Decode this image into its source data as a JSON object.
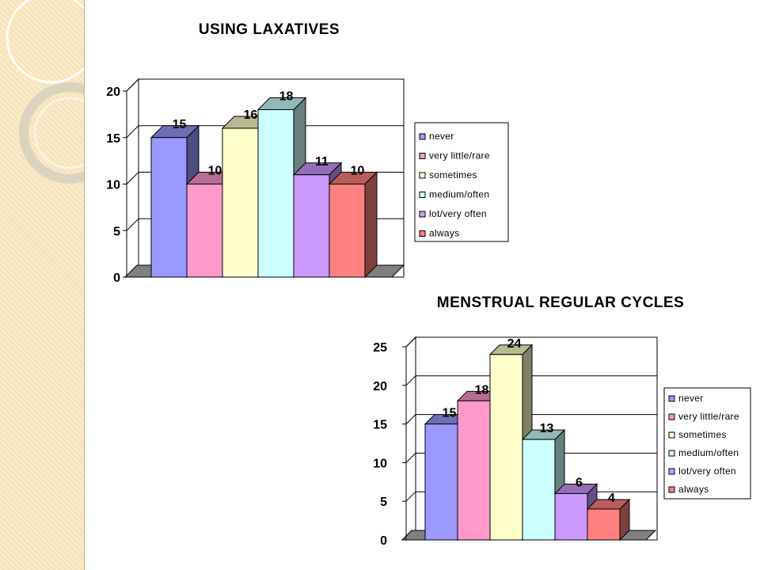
{
  "chart_data": [
    {
      "type": "bar",
      "title": "USING LAXATIVES",
      "categories": [
        "never",
        "very little/rare",
        "sometimes",
        "medium/often",
        "lot/very often",
        "always"
      ],
      "values": [
        15,
        10,
        16,
        18,
        11,
        10
      ],
      "colors": [
        "#9999ff",
        "#ff99cc",
        "#ffffcc",
        "#ccffff",
        "#cc99ff",
        "#ff8080"
      ],
      "ylim": [
        0,
        20
      ],
      "yticks": [
        "0",
        "5",
        "10",
        "15",
        "20"
      ],
      "legend": [
        "never",
        "very little/rare",
        "sometimes",
        "medium/often",
        "lot/very often",
        "always"
      ],
      "legend_position": "right",
      "grid": true,
      "style": "3d"
    },
    {
      "type": "bar",
      "title": "MENSTRUAL REGULAR CYCLES",
      "categories": [
        "never",
        "very little/rare",
        "sometimes",
        "medium/often",
        "lot/very often",
        "always"
      ],
      "values": [
        15,
        18,
        24,
        13,
        6,
        4
      ],
      "colors": [
        "#9999ff",
        "#ff99cc",
        "#ffffcc",
        "#ccffff",
        "#cc99ff",
        "#ff8080"
      ],
      "ylim": [
        0,
        25
      ],
      "yticks": [
        "0",
        "5",
        "10",
        "15",
        "20",
        "25"
      ],
      "legend": [
        "never",
        "very little/rare",
        "sometimes",
        "medium/often",
        "lot/very often",
        "always"
      ],
      "legend_position": "right",
      "grid": true,
      "style": "3d"
    }
  ]
}
